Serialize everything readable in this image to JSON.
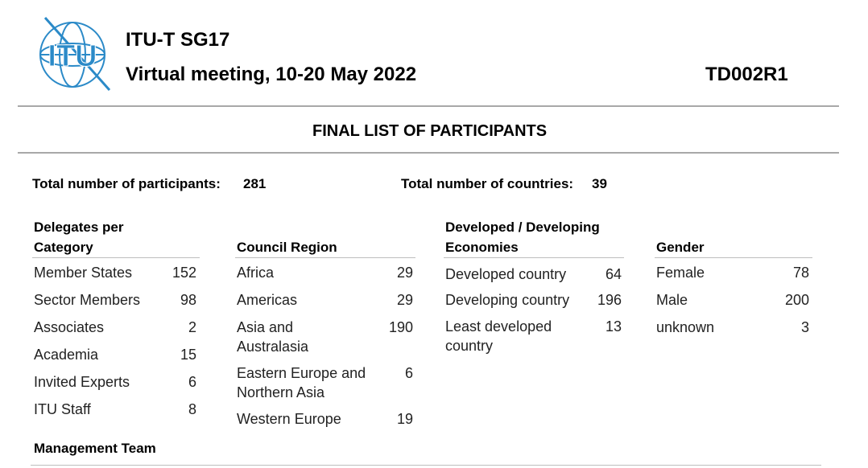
{
  "header": {
    "group": "ITU-T SG17",
    "meeting": "Virtual meeting, 10-20 May 2022",
    "doc_id": "TD002R1",
    "logo_text": "ITU"
  },
  "title": "FINAL LIST OF PARTICIPANTS",
  "totals": {
    "participants_label": "Total number of participants:",
    "participants_value": "281",
    "countries_label": "Total number of countries:",
    "countries_value": "39"
  },
  "category": {
    "heading_line1": "Delegates per",
    "heading_line2": "Category",
    "rows": [
      {
        "label": "Member States",
        "value": "152"
      },
      {
        "label": "Sector Members",
        "value": "98"
      },
      {
        "label": "Associates",
        "value": "2"
      },
      {
        "label": "Academia",
        "value": "15"
      },
      {
        "label": "Invited Experts",
        "value": "6"
      },
      {
        "label": "ITU Staff",
        "value": "8"
      }
    ]
  },
  "region": {
    "heading": "Council Region",
    "rows": [
      {
        "label_line1": "Africa",
        "value": "29"
      },
      {
        "label_line1": "Americas",
        "value": "29"
      },
      {
        "label_line1": "Asia and",
        "label_line2": "Australasia",
        "value": "190"
      },
      {
        "label_line1": "Eastern Europe and",
        "label_line2": "Northern Asia",
        "value": "6"
      },
      {
        "label_line1": "Western Europe",
        "value": "19"
      }
    ]
  },
  "economies": {
    "heading_line1": "Developed / Developing",
    "heading_line2": "Economies",
    "rows": [
      {
        "label_line1": "Developed country",
        "value": "64"
      },
      {
        "label_line1": "Developing country",
        "value": "196"
      },
      {
        "label_line1": "Least developed",
        "label_line2": "country",
        "value": "13"
      }
    ]
  },
  "gender": {
    "heading": "Gender",
    "rows": [
      {
        "label": "Female",
        "value": "78"
      },
      {
        "label": "Male",
        "value": "200"
      },
      {
        "label": "unknown",
        "value": "3"
      }
    ]
  },
  "management_heading": "Management Team",
  "colors": {
    "logo_blue": "#2b8ac8",
    "rule_gray": "#a8a8a8"
  }
}
